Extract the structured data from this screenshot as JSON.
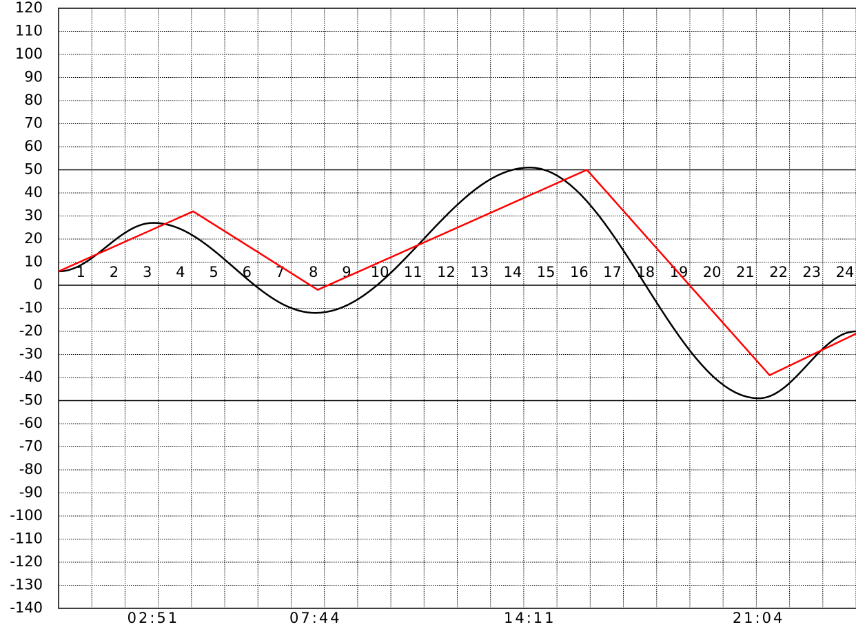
{
  "chart_data": {
    "type": "line",
    "xlim": [
      0,
      24
    ],
    "xticks": [
      1,
      2,
      3,
      4,
      5,
      6,
      7,
      8,
      9,
      10,
      11,
      12,
      13,
      14,
      15,
      16,
      17,
      18,
      19,
      20,
      21,
      22,
      23,
      24
    ],
    "ylim": [
      -140,
      120
    ],
    "yticks": [
      -140,
      -130,
      -120,
      -110,
      -100,
      -90,
      -80,
      -70,
      -60,
      -50,
      -40,
      -30,
      -20,
      -10,
      0,
      10,
      20,
      30,
      40,
      50,
      60,
      70,
      80,
      90,
      100,
      110,
      120
    ],
    "reference_lines": [
      50,
      0,
      -50
    ],
    "grid": true,
    "time_labels": [
      "02:51",
      "07:44",
      "14:11",
      "21:04"
    ],
    "series": [
      {
        "color": "#000000",
        "curve": "cosine",
        "x": [
          0,
          2.85,
          7.73,
          14.18,
          21.07,
          24
        ],
        "values": [
          6,
          27,
          -12,
          51,
          -49,
          -20
        ]
      },
      {
        "color": "#ff0000",
        "curve": "linear",
        "x": [
          0,
          4.05,
          7.8,
          15.9,
          21.4,
          24
        ],
        "values": [
          6,
          32,
          -2,
          50,
          -39,
          -21
        ]
      }
    ]
  }
}
